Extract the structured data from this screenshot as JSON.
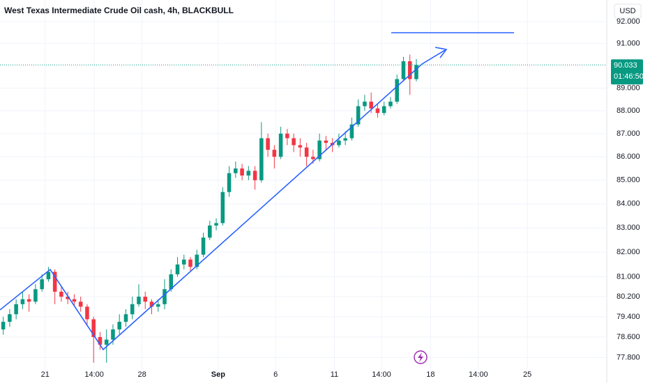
{
  "chart_data": {
    "type": "candlestick",
    "title": "West Texas Intermediate Crude Oil cash, 4h, BLACKBULL",
    "currency": "USD",
    "up_color": "#089981",
    "down_color": "#f23645",
    "log_scale": true,
    "grid": true,
    "x": [
      0,
      1,
      2,
      3,
      4,
      5,
      6,
      7,
      8,
      9,
      10,
      11,
      12,
      13,
      14,
      15,
      16,
      17,
      18,
      19,
      20,
      21,
      22,
      23,
      24,
      25,
      26,
      27,
      28,
      29,
      30,
      31,
      32,
      33,
      34,
      35,
      36,
      37,
      38,
      39,
      40,
      41,
      42,
      43,
      44,
      45,
      46,
      47,
      48,
      49,
      50,
      51,
      52,
      53,
      54,
      55,
      56,
      57,
      58,
      59,
      60,
      61,
      62,
      63,
      64
    ],
    "open": [
      78.9,
      79.2,
      79.5,
      79.9,
      80.1,
      80.0,
      80.5,
      80.9,
      81.2,
      80.4,
      80.2,
      80.1,
      80.0,
      79.8,
      79.3,
      78.6,
      78.3,
      78.5,
      78.9,
      79.2,
      79.5,
      79.9,
      80.2,
      80.0,
      79.8,
      79.9,
      80.5,
      81.1,
      81.5,
      81.7,
      81.4,
      81.9,
      82.6,
      83.1,
      83.2,
      84.5,
      85.3,
      85.5,
      85.2,
      85.4,
      85.0,
      86.8,
      86.3,
      86.0,
      87.0,
      86.8,
      86.5,
      86.4,
      86.0,
      85.9,
      86.7,
      86.6,
      86.5,
      86.7,
      86.8,
      87.4,
      88.2,
      88.4,
      88.1,
      87.9,
      88.2,
      88.4,
      89.4,
      90.2,
      89.4
    ],
    "high": [
      79.4,
      79.7,
      80.1,
      80.4,
      80.3,
      80.7,
      81.1,
      81.4,
      81.3,
      80.6,
      80.4,
      80.3,
      80.2,
      79.9,
      79.4,
      78.8,
      78.9,
      79.1,
      79.5,
      79.7,
      80.2,
      80.7,
      80.4,
      80.1,
      80.1,
      80.9,
      81.3,
      81.8,
      81.9,
      81.8,
      82.1,
      82.8,
      83.3,
      83.4,
      84.7,
      85.6,
      85.8,
      85.7,
      85.6,
      85.6,
      87.5,
      87.0,
      86.5,
      87.3,
      87.2,
      87.0,
      86.8,
      86.6,
      86.3,
      87.0,
      86.9,
      86.8,
      87.0,
      87.1,
      87.7,
      88.5,
      88.7,
      88.8,
      88.3,
      88.4,
      88.6,
      89.6,
      90.4,
      90.5,
      90.3
    ],
    "low": [
      78.7,
      79.0,
      79.3,
      79.7,
      79.6,
      79.9,
      80.4,
      80.8,
      79.9,
      80.0,
      79.9,
      79.8,
      79.6,
      79.1,
      77.6,
      78.1,
      77.6,
      78.3,
      78.7,
      79.0,
      79.3,
      79.8,
      79.7,
      79.5,
      79.6,
      79.7,
      80.4,
      81.0,
      81.3,
      81.2,
      81.3,
      81.8,
      82.5,
      82.9,
      83.1,
      84.3,
      85.1,
      85.0,
      85.0,
      84.6,
      84.9,
      86.0,
      85.5,
      85.9,
      86.5,
      86.2,
      86.0,
      85.6,
      85.7,
      85.8,
      86.3,
      86.2,
      86.4,
      86.5,
      86.7,
      87.3,
      88.0,
      87.9,
      87.7,
      87.8,
      88.1,
      88.3,
      89.3,
      88.7,
      89.3
    ],
    "close": [
      79.2,
      79.5,
      79.9,
      80.1,
      80.0,
      80.5,
      80.9,
      81.2,
      80.4,
      80.2,
      80.1,
      80.0,
      79.8,
      79.3,
      78.6,
      78.3,
      78.5,
      78.9,
      79.2,
      79.5,
      79.9,
      80.2,
      80.0,
      79.8,
      79.9,
      80.5,
      81.1,
      81.5,
      81.7,
      81.4,
      81.9,
      82.6,
      83.1,
      83.2,
      84.5,
      85.3,
      85.5,
      85.2,
      85.4,
      85.0,
      86.8,
      86.3,
      86.0,
      87.0,
      86.8,
      86.5,
      86.4,
      86.0,
      85.9,
      86.7,
      86.6,
      86.5,
      86.7,
      86.8,
      87.4,
      88.2,
      88.4,
      88.1,
      87.9,
      88.2,
      88.4,
      89.4,
      90.2,
      89.4,
      90.033
    ],
    "xlim": [
      -0.5,
      93.5
    ],
    "xticks": [
      {
        "value": 6.5,
        "label": "21"
      },
      {
        "value": 14.1,
        "label": "14:00"
      },
      {
        "value": 21.5,
        "label": "28"
      },
      {
        "value": 33.3,
        "label": "Sep"
      },
      {
        "value": 42.2,
        "label": "6"
      },
      {
        "value": 51.3,
        "label": "11"
      },
      {
        "value": 58.6,
        "label": "14:00"
      },
      {
        "value": 66.2,
        "label": "18"
      },
      {
        "value": 73.6,
        "label": "14:00"
      },
      {
        "value": 81.2,
        "label": "25"
      }
    ],
    "ylim": [
      77.3,
      93.0
    ],
    "yticks": [
      {
        "value": 92,
        "label": "92.000"
      },
      {
        "value": 91,
        "label": "91.000"
      },
      {
        "value": 89,
        "label": "89.000"
      },
      {
        "value": 88,
        "label": "88.000"
      },
      {
        "value": 87,
        "label": "87.000"
      },
      {
        "value": 86,
        "label": "86.000"
      },
      {
        "value": 85,
        "label": "85.000"
      },
      {
        "value": 84,
        "label": "84.000"
      },
      {
        "value": 83,
        "label": "83.000"
      },
      {
        "value": 82,
        "label": "82.000"
      },
      {
        "value": 81,
        "label": "81.000"
      },
      {
        "value": 80.2,
        "label": "80.200"
      },
      {
        "value": 79.4,
        "label": "79.400"
      },
      {
        "value": 78.6,
        "label": "78.600"
      },
      {
        "value": 77.8,
        "label": "77.800"
      }
    ],
    "last_price": {
      "value": 90.033,
      "label": "90.033"
    },
    "countdown": "01:46:50"
  }
}
